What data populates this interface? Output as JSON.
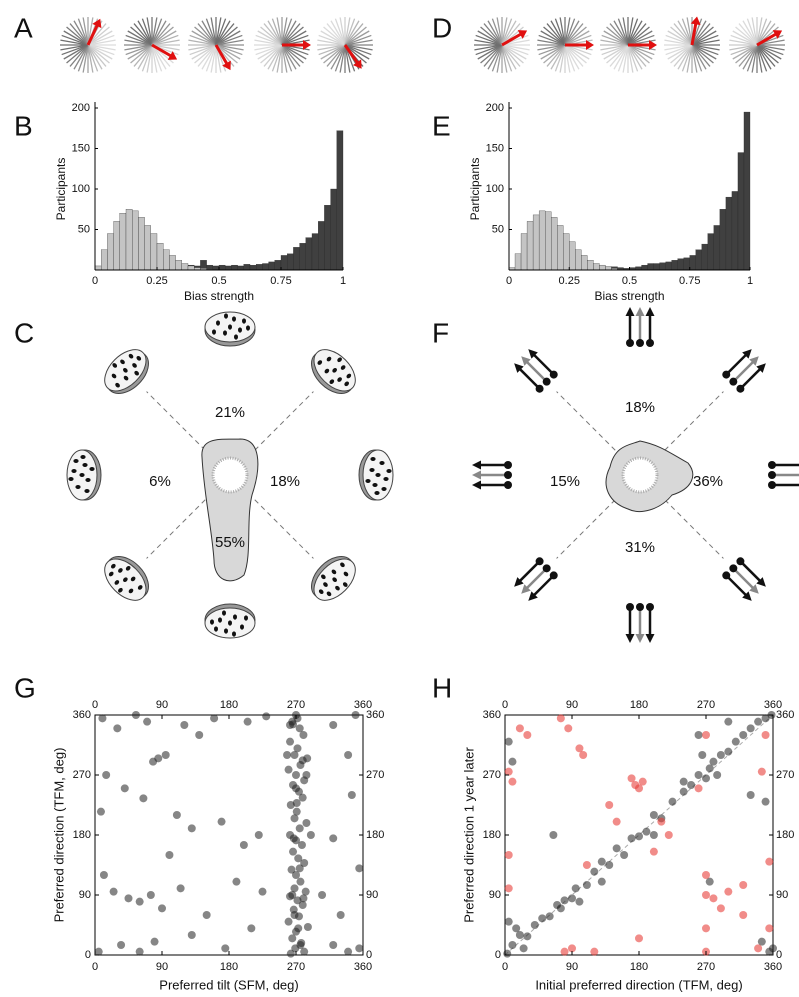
{
  "chart_data": [
    {
      "panel": "A",
      "type": "fan"
    },
    {
      "panel": "B",
      "type": "histogram",
      "xlabel": "Bias strength",
      "ylabel": "Participants",
      "bins": [
        0,
        0.025,
        0.05,
        0.075,
        0.1,
        0.125,
        0.15,
        0.175,
        0.2,
        0.225,
        0.25,
        0.275,
        0.3,
        0.325,
        0.35,
        0.375,
        0.4,
        0.425,
        0.45,
        0.475,
        0.5,
        0.525,
        0.55,
        0.575,
        0.6,
        0.625,
        0.65,
        0.675,
        0.7,
        0.725,
        0.75,
        0.775,
        0.8,
        0.825,
        0.85,
        0.875,
        0.9,
        0.925,
        0.95,
        0.975,
        1
      ],
      "series": [
        {
          "color": "#404040",
          "values": [
            0,
            1,
            1,
            1,
            1,
            1,
            2,
            2,
            2,
            2,
            3,
            3,
            4,
            4,
            5,
            6,
            5,
            12,
            6,
            5,
            6,
            5,
            6,
            5,
            7,
            6,
            7,
            8,
            10,
            12,
            18,
            20,
            28,
            33,
            40,
            45,
            60,
            80,
            100,
            172
          ]
        },
        {
          "color": "#c4c4c4",
          "values": [
            5,
            25,
            45,
            60,
            70,
            75,
            73,
            65,
            55,
            45,
            33,
            25,
            18,
            12,
            8,
            5,
            3,
            2,
            1,
            0,
            0,
            0,
            0,
            0,
            0,
            0,
            0,
            0,
            0,
            0,
            0,
            0,
            0,
            0,
            0,
            0,
            0,
            0,
            0,
            0
          ]
        }
      ],
      "xlim": [
        0,
        1
      ],
      "ylim": [
        0,
        200
      ],
      "xticks": [
        0,
        0.25,
        0.5,
        0.75,
        1
      ],
      "yticks": [
        50,
        100,
        150,
        200
      ]
    },
    {
      "panel": "C",
      "type": "radial",
      "values": [
        21,
        6,
        18,
        55
      ],
      "value_labels": [
        "21%",
        "6%",
        "18%",
        "55%"
      ]
    },
    {
      "panel": "D",
      "type": "fan"
    },
    {
      "panel": "E",
      "type": "histogram",
      "xlabel": "Bias strength",
      "ylabel": "Participants",
      "bins": [
        0,
        0.025,
        0.05,
        0.075,
        0.1,
        0.125,
        0.15,
        0.175,
        0.2,
        0.225,
        0.25,
        0.275,
        0.3,
        0.325,
        0.35,
        0.375,
        0.4,
        0.425,
        0.45,
        0.475,
        0.5,
        0.525,
        0.55,
        0.575,
        0.6,
        0.625,
        0.65,
        0.675,
        0.7,
        0.725,
        0.75,
        0.775,
        0.8,
        0.825,
        0.85,
        0.875,
        0.9,
        0.925,
        0.95,
        0.975,
        1
      ],
      "series": [
        {
          "color": "#404040",
          "values": [
            0,
            0,
            1,
            1,
            1,
            1,
            1,
            2,
            2,
            2,
            2,
            3,
            3,
            3,
            3,
            4,
            4,
            4,
            3,
            2,
            3,
            4,
            6,
            8,
            8,
            9,
            10,
            12,
            14,
            15,
            18,
            25,
            32,
            45,
            55,
            75,
            90,
            97,
            145,
            195
          ]
        },
        {
          "color": "#c4c4c4",
          "values": [
            3,
            20,
            45,
            60,
            68,
            73,
            72,
            65,
            55,
            45,
            35,
            25,
            18,
            12,
            8,
            6,
            4,
            2,
            1,
            0,
            0,
            0,
            0,
            0,
            0,
            0,
            0,
            0,
            0,
            0,
            0,
            0,
            0,
            0,
            0,
            0,
            0,
            0,
            0,
            0
          ]
        }
      ],
      "xlim": [
        0,
        1
      ],
      "ylim": [
        0,
        200
      ],
      "xticks": [
        0,
        0.25,
        0.5,
        0.75,
        1
      ],
      "yticks": [
        50,
        100,
        150,
        200
      ]
    },
    {
      "panel": "F",
      "type": "radial",
      "values": [
        18,
        15,
        36,
        31
      ],
      "value_labels": [
        "18%",
        "15%",
        "36%",
        "31%"
      ]
    },
    {
      "panel": "G",
      "type": "scatter",
      "xlabel": "Preferred tilt (SFM, deg)",
      "ylabel": "Preferred direction (TFM, deg)",
      "xlim": [
        0,
        360
      ],
      "ylim": [
        0,
        360
      ],
      "xticks": [
        0,
        90,
        180,
        270,
        360
      ],
      "yticks": [
        0,
        90,
        180,
        270,
        360
      ],
      "series": [
        {
          "color": "#222222",
          "x": [
            270,
            265,
            275,
            280,
            262,
            272,
            268,
            285,
            276,
            260,
            270,
            281,
            266,
            274,
            279,
            263,
            271,
            268,
            284,
            275,
            262,
            270,
            278,
            266,
            273,
            281,
            264,
            270,
            276,
            268,
            283,
            262,
            272,
            279,
            267,
            274,
            260,
            286,
            270,
            265,
            277,
            269,
            281,
            263,
            272,
            266,
            279,
            271,
            265,
            276,
            284,
            258,
            290,
            268,
            275,
            262,
            280,
            270,
            273,
            267,
            10,
            30,
            55,
            70,
            85,
            78,
            95,
            120,
            140,
            160,
            205,
            230,
            320,
            350,
            15,
            40,
            65,
            110,
            130,
            170,
            200,
            220,
            320,
            345,
            340,
            12,
            25,
            45,
            60,
            75,
            90,
            115,
            150,
            190,
            225,
            305,
            330,
            355,
            5,
            35,
            60,
            80,
            130,
            175,
            210,
            320,
            340,
            100,
            8,
            355
          ],
          "values": [
            360,
            350,
            340,
            330,
            320,
            310,
            300,
            295,
            285,
            278,
            270,
            262,
            255,
            245,
            236,
            225,
            215,
            205,
            198,
            190,
            180,
            172,
            165,
            155,
            145,
            138,
            128,
            120,
            110,
            100,
            95,
            88,
            82,
            75,
            68,
            58,
            50,
            42,
            35,
            25,
            18,
            10,
            5,
            2,
            355,
            346,
            292,
            228,
            90,
            15,
            270,
            300,
            180,
            60,
            130,
            345,
            85,
            250,
            40,
            175,
            355,
            340,
            360,
            350,
            295,
            290,
            300,
            345,
            330,
            355,
            350,
            358,
            345,
            360,
            270,
            250,
            235,
            210,
            190,
            200,
            165,
            180,
            175,
            240,
            300,
            120,
            95,
            85,
            80,
            90,
            70,
            100,
            60,
            110,
            95,
            90,
            60,
            10,
            5,
            15,
            5,
            20,
            30,
            10,
            40,
            15,
            5,
            150,
            215,
            130
          ]
        }
      ]
    },
    {
      "panel": "H",
      "type": "scatter",
      "xlabel": "Initial preferred direction (TFM, deg)",
      "ylabel": "Preferred direction 1 year later",
      "xlim": [
        0,
        360
      ],
      "ylim": [
        0,
        360
      ],
      "xticks": [
        0,
        90,
        180,
        270,
        360
      ],
      "yticks": [
        0,
        90,
        180,
        270,
        360
      ],
      "series": [
        {
          "color": "#222222",
          "x": [
            3,
            10,
            20,
            30,
            40,
            50,
            60,
            70,
            75,
            80,
            90,
            95,
            110,
            120,
            130,
            140,
            150,
            160,
            170,
            180,
            190,
            200,
            210,
            225,
            240,
            250,
            260,
            270,
            275,
            280,
            290,
            300,
            310,
            320,
            330,
            340,
            350,
            358,
            265,
            285,
            5,
            10,
            15,
            25,
            345,
            355,
            360,
            300,
            240,
            200,
            100,
            65,
            275,
            330,
            350,
            260,
            5,
            130
          ],
          "values": [
            2,
            15,
            30,
            28,
            45,
            55,
            58,
            75,
            70,
            82,
            85,
            100,
            105,
            125,
            140,
            135,
            160,
            150,
            175,
            178,
            185,
            210,
            205,
            230,
            245,
            255,
            270,
            265,
            280,
            290,
            300,
            305,
            320,
            330,
            340,
            350,
            355,
            360,
            300,
            270,
            320,
            290,
            40,
            10,
            20,
            5,
            10,
            350,
            260,
            180,
            80,
            180,
            110,
            240,
            230,
            330,
            50,
            110
          ]
        },
        {
          "color": "#e8403a",
          "x": [
            75,
            85,
            20,
            30,
            100,
            105,
            5,
            10,
            170,
            175,
            185,
            180,
            140,
            150,
            210,
            220,
            200,
            5,
            110,
            5,
            270,
            280,
            300,
            320,
            270,
            260,
            270,
            350,
            345,
            355,
            290,
            320,
            180,
            270,
            90,
            120,
            340,
            355,
            270,
            80
          ],
          "values": [
            355,
            340,
            340,
            330,
            310,
            300,
            275,
            260,
            265,
            255,
            260,
            250,
            225,
            200,
            200,
            180,
            155,
            150,
            135,
            100,
            90,
            85,
            95,
            105,
            120,
            250,
            330,
            330,
            275,
            140,
            70,
            60,
            25,
            5,
            10,
            5,
            10,
            40,
            40,
            5
          ]
        }
      ]
    }
  ]
}
